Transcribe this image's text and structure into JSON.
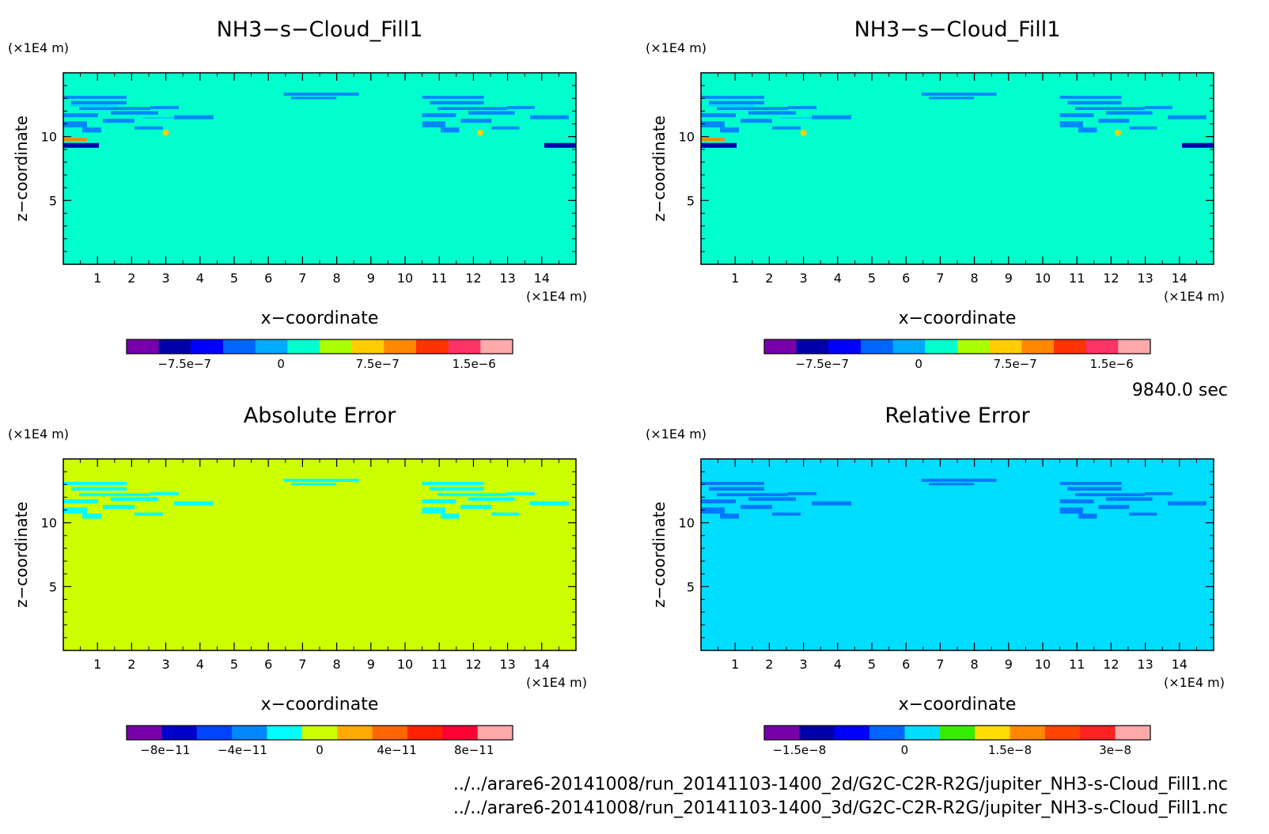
{
  "time_label": "9840.0 sec",
  "footer": {
    "file1": "../../arare6-20141008/run_20141103-1400_2d/G2C-C2R-R2G/jupiter_NH3-s-Cloud_Fill1.nc",
    "file2": "../../arare6-20141008/run_20141103-1400_3d/G2C-C2R-R2G/jupiter_NH3-s-Cloud_Fill1.nc"
  },
  "chart_data": [
    {
      "type": "heatmap",
      "title": "NH3−s−Cloud_Fill1",
      "xlabel": "x−coordinate",
      "ylabel": "z−coordinate",
      "x_unit": "(×1E4 m)",
      "y_unit": "(×1E4 m)",
      "xlim": [
        0,
        15
      ],
      "ylim": [
        0,
        15
      ],
      "x_ticks": [
        "1",
        "2",
        "3",
        "4",
        "5",
        "6",
        "7",
        "8",
        "9",
        "10",
        "11",
        "12",
        "13",
        "14"
      ],
      "y_ticks": [
        "5",
        "10"
      ],
      "background_level": "0",
      "background_color": "#00ffcc",
      "colorbar": {
        "colors": [
          "#7700aa",
          "#0000aa",
          "#0000ff",
          "#0066ff",
          "#00aaff",
          "#00ffcc",
          "#aaff00",
          "#ffcc00",
          "#ff8800",
          "#ff3300",
          "#ff3366",
          "#ffaaaa"
        ],
        "tick_labels": [
          "−7.5e−7",
          "0",
          "7.5e−7",
          "1.5e−6"
        ],
        "tick_values": [
          -7.5e-07,
          0,
          7.5e-07,
          1.5e-06
        ],
        "range": [
          -1.2e-06,
          1.8e-06
        ]
      }
    },
    {
      "type": "heatmap",
      "title": "NH3−s−Cloud_Fill1",
      "xlabel": "x−coordinate",
      "ylabel": "z−coordinate",
      "x_unit": "(×1E4 m)",
      "y_unit": "(×1E4 m)",
      "xlim": [
        0,
        15
      ],
      "ylim": [
        0,
        15
      ],
      "x_ticks": [
        "1",
        "2",
        "3",
        "4",
        "5",
        "6",
        "7",
        "8",
        "9",
        "10",
        "11",
        "12",
        "13",
        "14"
      ],
      "y_ticks": [
        "5",
        "10"
      ],
      "background_level": "0",
      "background_color": "#00ffcc",
      "colorbar": {
        "colors": [
          "#7700aa",
          "#0000aa",
          "#0000ff",
          "#0066ff",
          "#00aaff",
          "#00ffcc",
          "#aaff00",
          "#ffcc00",
          "#ff8800",
          "#ff3300",
          "#ff3366",
          "#ffaaaa"
        ],
        "tick_labels": [
          "−7.5e−7",
          "0",
          "7.5e−7",
          "1.5e−6"
        ],
        "tick_values": [
          -7.5e-07,
          0,
          7.5e-07,
          1.5e-06
        ],
        "range": [
          -1.2e-06,
          1.8e-06
        ]
      }
    },
    {
      "type": "heatmap",
      "title": "Absolute Error",
      "xlabel": "x−coordinate",
      "ylabel": "z−coordinate",
      "x_unit": "(×1E4 m)",
      "y_unit": "(×1E4 m)",
      "xlim": [
        0,
        15
      ],
      "ylim": [
        0,
        15
      ],
      "x_ticks": [
        "1",
        "2",
        "3",
        "4",
        "5",
        "6",
        "7",
        "8",
        "9",
        "10",
        "11",
        "12",
        "13",
        "14"
      ],
      "y_ticks": [
        "5",
        "10"
      ],
      "background_level": "0",
      "background_color": "#ccff00",
      "colorbar": {
        "colors": [
          "#7700aa",
          "#0000cc",
          "#0044ff",
          "#0088ff",
          "#00ffff",
          "#ccff00",
          "#ffaa00",
          "#ff6600",
          "#ff2200",
          "#ff0033",
          "#ffaaaa"
        ],
        "tick_labels": [
          "−8e−11",
          "−4e−11",
          "0",
          "4e−11",
          "8e−11"
        ],
        "tick_values": [
          -8e-11,
          -4e-11,
          0,
          4e-11,
          8e-11
        ],
        "range": [
          -1e-10,
          1e-10
        ]
      }
    },
    {
      "type": "heatmap",
      "title": "Relative Error",
      "xlabel": "x−coordinate",
      "ylabel": "z−coordinate",
      "x_unit": "(×1E4 m)",
      "y_unit": "(×1E4 m)",
      "xlim": [
        0,
        15
      ],
      "ylim": [
        0,
        15
      ],
      "x_ticks": [
        "1",
        "2",
        "3",
        "4",
        "5",
        "6",
        "7",
        "8",
        "9",
        "10",
        "11",
        "12",
        "13",
        "14"
      ],
      "y_ticks": [
        "5",
        "10"
      ],
      "background_level": "0",
      "background_color": "#00ddff",
      "colorbar": {
        "colors": [
          "#7700aa",
          "#0000aa",
          "#0000ff",
          "#0066ff",
          "#00ddff",
          "#33ee00",
          "#ffdd00",
          "#ff8800",
          "#ff4400",
          "#ff2222",
          "#ffaaaa"
        ],
        "tick_labels": [
          "−1.5e−8",
          "0",
          "1.5e−8",
          "3e−8"
        ],
        "tick_values": [
          -1.5e-08,
          0,
          1.5e-08,
          3e-08
        ],
        "range": [
          -2e-08,
          3.5e-08
        ]
      }
    }
  ]
}
